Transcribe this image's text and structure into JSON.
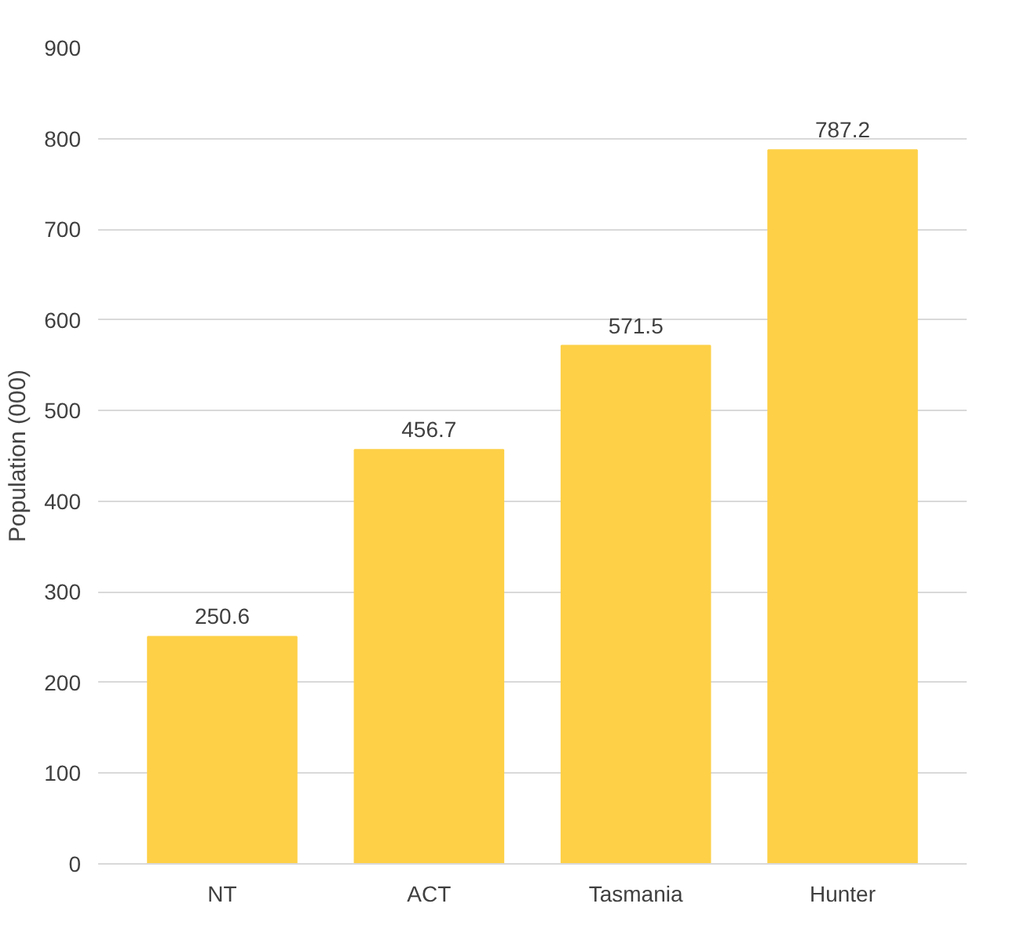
{
  "chart_data": {
    "type": "bar",
    "ylabel": "Population (000)",
    "categories": [
      "NT",
      "ACT",
      "Tasmania",
      "Hunter"
    ],
    "values": [
      250.6,
      456.7,
      571.5,
      787.2
    ],
    "color": "#fdd047",
    "ylim": [
      0,
      900
    ],
    "yticks": [
      0,
      100,
      200,
      300,
      400,
      500,
      600,
      700,
      800,
      900
    ],
    "grid": "y",
    "data_labels": true
  }
}
